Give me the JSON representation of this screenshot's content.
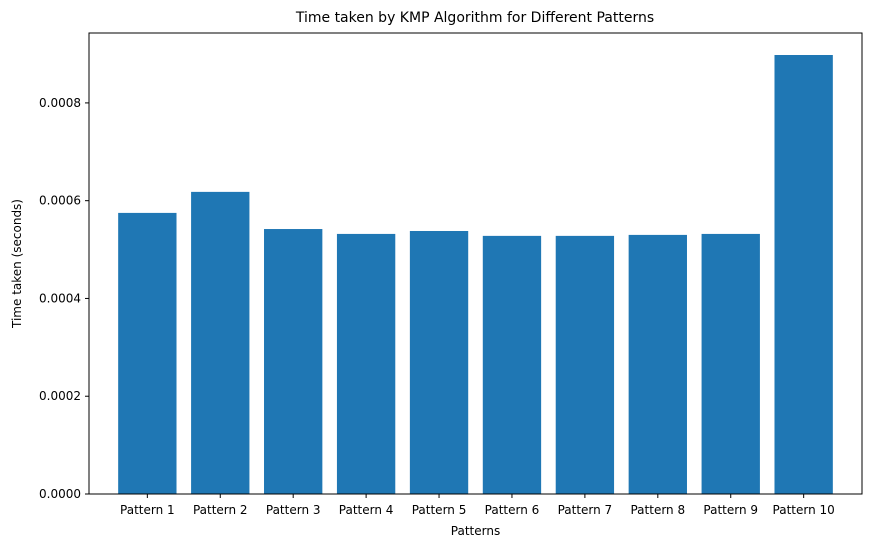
{
  "chart_data": {
    "type": "bar",
    "title": "Time taken by KMP Algorithm for Different Patterns",
    "xlabel": "Patterns",
    "ylabel": "Time taken (seconds)",
    "categories": [
      "Pattern 1",
      "Pattern 2",
      "Pattern 3",
      "Pattern 4",
      "Pattern 5",
      "Pattern 6",
      "Pattern 7",
      "Pattern 8",
      "Pattern 9",
      "Pattern 10"
    ],
    "values": [
      0.000575,
      0.000618,
      0.000542,
      0.000532,
      0.000538,
      0.000528,
      0.000528,
      0.00053,
      0.000532,
      0.000898
    ],
    "ylim": [
      0,
      0.000943
    ],
    "yticks": [
      0.0,
      0.0002,
      0.0004,
      0.0006,
      0.0008
    ],
    "ytick_labels": [
      "0.0000",
      "0.0002",
      "0.0004",
      "0.0006",
      "0.0008"
    ],
    "bar_color": "#1f77b4",
    "grid": false,
    "legend": "none"
  }
}
